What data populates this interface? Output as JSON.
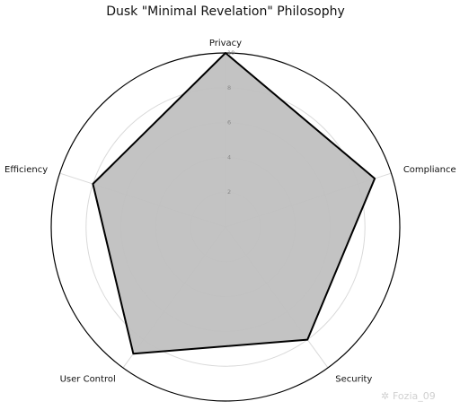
{
  "chart_data": {
    "type": "radar",
    "title": "Dusk \"Minimal Revelation\" Philosophy",
    "categories": [
      "Privacy",
      "Compliance",
      "Security",
      "User Control",
      "Efficiency"
    ],
    "series": [
      {
        "values": [
          10,
          9,
          8,
          9,
          8
        ]
      }
    ],
    "rlim": [
      0,
      10
    ],
    "rticks": [
      "2",
      "4",
      "6",
      "8",
      "10"
    ],
    "grid": true,
    "fill_color": "#c0c0c0",
    "line_color": "#000000"
  },
  "watermark": "Fozia_09"
}
